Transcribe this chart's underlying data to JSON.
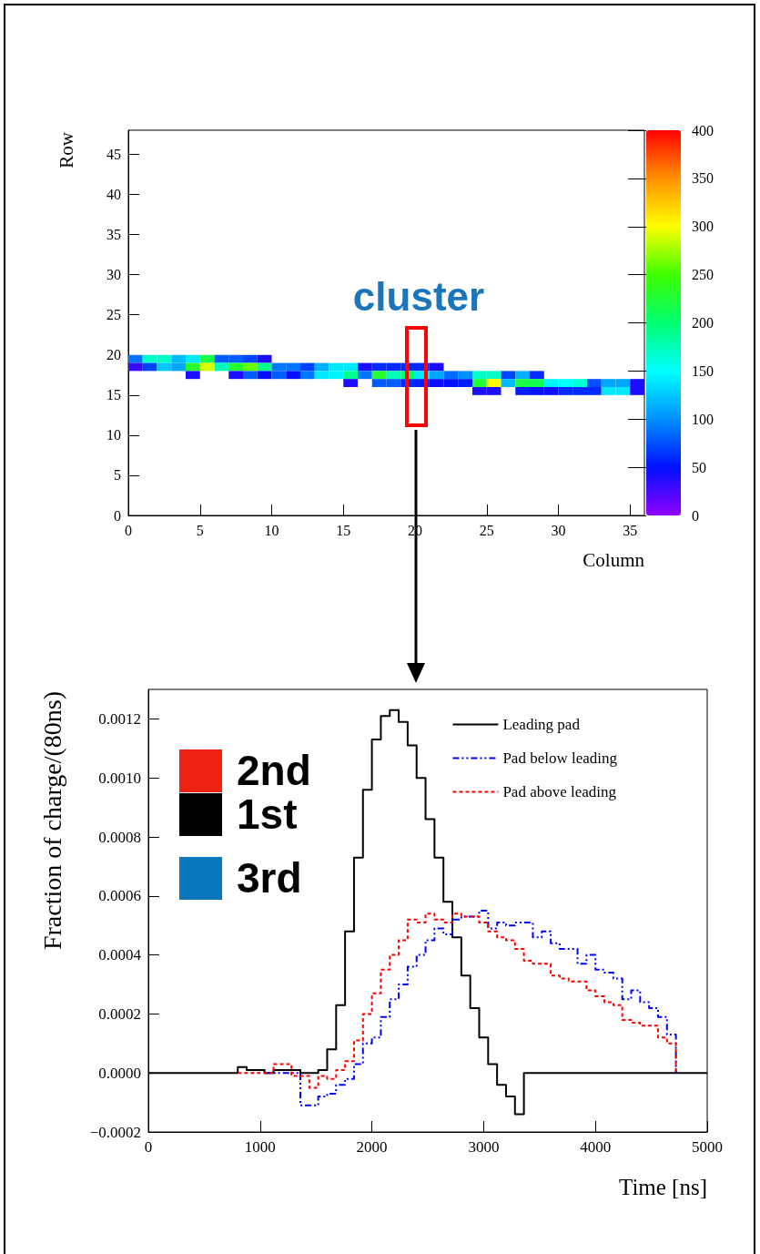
{
  "chart_data": [
    {
      "type": "scatter",
      "marker": "square",
      "xlabel": "Column",
      "ylabel": "Row",
      "xlim": [
        0,
        36
      ],
      "xticks": [
        0,
        5,
        10,
        15,
        20,
        25,
        30,
        35
      ],
      "ylim": [
        0,
        48
      ],
      "yticks": [
        0,
        5,
        10,
        15,
        20,
        25,
        30,
        35,
        40,
        45
      ],
      "clim": [
        0,
        400
      ],
      "cticks": [
        0,
        50,
        100,
        150,
        200,
        250,
        300,
        350,
        400
      ],
      "grid": false,
      "annotations": [
        "cluster"
      ],
      "x": [
        0.5,
        1.5,
        2.5,
        3.5,
        4.5,
        5.5,
        6.5,
        7.5,
        8.5,
        9.5,
        0.5,
        1.5,
        2.5,
        3.5,
        4.5,
        5.5,
        6.5,
        7.5,
        8.5,
        9.5,
        10.5,
        11.5,
        12.5,
        13.5,
        14.5,
        15.5,
        16.5,
        17.5,
        18.5,
        19.5,
        20.5,
        21.5,
        4.5,
        7.5,
        8.5,
        9.5,
        10.5,
        11.5,
        12.5,
        13.5,
        14.5,
        15.5,
        16.5,
        17.5,
        18.5,
        19.5,
        20.5,
        21.5,
        22.5,
        23.5,
        24.5,
        25.5,
        26.5,
        27.5,
        28.5,
        15.5,
        17.5,
        18.5,
        19.5,
        20.5,
        21.5,
        22.5,
        23.5,
        24.5,
        25.5,
        26.5,
        27.5,
        28.5,
        29.5,
        30.5,
        31.5,
        32.5,
        33.5,
        34.5,
        35.5,
        24.5,
        25.5,
        27.5,
        28.5,
        29.5,
        30.5,
        31.5,
        32.5,
        33.5,
        34.5,
        35.5
      ],
      "values": [
        19.5,
        19.5,
        19.5,
        19.5,
        19.5,
        19.5,
        19.5,
        19.5,
        19.5,
        19.5,
        18.5,
        18.5,
        18.5,
        18.5,
        18.5,
        18.5,
        18.5,
        18.5,
        18.5,
        18.5,
        18.5,
        18.5,
        18.5,
        18.5,
        18.5,
        18.5,
        18.5,
        18.5,
        18.5,
        18.5,
        18.5,
        18.5,
        17.5,
        17.5,
        17.5,
        17.5,
        17.5,
        17.5,
        17.5,
        17.5,
        17.5,
        17.5,
        17.5,
        17.5,
        17.5,
        17.5,
        17.5,
        17.5,
        17.5,
        17.5,
        17.5,
        17.5,
        17.5,
        17.5,
        17.5,
        16.5,
        16.5,
        16.5,
        16.5,
        16.5,
        16.5,
        16.5,
        16.5,
        16.5,
        16.5,
        16.5,
        16.5,
        16.5,
        16.5,
        16.5,
        16.5,
        16.5,
        16.5,
        16.5,
        16.5,
        15.5,
        15.5,
        15.5,
        15.5,
        15.5,
        15.5,
        15.5,
        15.5,
        15.5,
        15.5,
        15.5
      ],
      "cvalues": [
        90,
        170,
        170,
        120,
        140,
        220,
        80,
        80,
        70,
        40,
        30,
        70,
        125,
        110,
        230,
        290,
        175,
        230,
        260,
        190,
        90,
        90,
        70,
        115,
        140,
        140,
        40,
        60,
        60,
        60,
        60,
        40,
        40,
        40,
        80,
        50,
        80,
        50,
        90,
        140,
        145,
        190,
        90,
        230,
        175,
        200,
        140,
        110,
        85,
        100,
        170,
        170,
        70,
        115,
        60,
        40,
        80,
        80,
        60,
        55,
        45,
        50,
        55,
        225,
        300,
        120,
        220,
        215,
        145,
        150,
        165,
        75,
        110,
        110,
        40,
        40,
        40,
        55,
        50,
        45,
        60,
        60,
        60,
        140,
        140,
        40
      ]
    },
    {
      "type": "step",
      "xlabel": "Time [ns]",
      "ylabel": "Fraction of charge/(80ns)",
      "xlim": [
        0,
        5000
      ],
      "xticks": [
        0,
        1000,
        2000,
        3000,
        4000,
        5000
      ],
      "ylim": [
        -0.0002,
        0.0013
      ],
      "yticks": [
        {
          "value": -0.0002,
          "label": "−0.0002"
        },
        {
          "value": 0,
          "label": "0.0000"
        },
        {
          "value": 0.0002,
          "label": "0.0002"
        },
        {
          "value": 0.0004,
          "label": "0.0004"
        },
        {
          "value": 0.0006,
          "label": "0.0006"
        },
        {
          "value": 0.0008,
          "label": "0.0008"
        },
        {
          "value": 0.001,
          "label": "0.0010"
        },
        {
          "value": 0.0012,
          "label": "0.0012"
        }
      ],
      "grid": false,
      "legend": "top right",
      "annotations": [
        "2nd",
        "1st",
        "3rd"
      ],
      "series": [
        {
          "name": "Leading pad",
          "color": "#000000",
          "line_style": "solid",
          "x": [
            0,
            800,
            880,
            1040,
            1120,
            1360,
            1440,
            1520,
            1600,
            1680,
            1760,
            1840,
            1920,
            2000,
            2080,
            2160,
            2240,
            2320,
            2400,
            2480,
            2560,
            2640,
            2720,
            2800,
            2880,
            2960,
            3040,
            3120,
            3200,
            3280,
            3360,
            5000
          ],
          "values": [
            0,
            2e-05,
            1e-05,
            0,
            1e-05,
            0,
            0,
            1e-05,
            8e-05,
            0.00023,
            0.00048,
            0.00073,
            0.00096,
            0.00113,
            0.00121,
            0.00123,
            0.00119,
            0.00111,
            0.001,
            0.00086,
            0.00073,
            0.00058,
            0.00046,
            0.00033,
            0.00022,
            0.00012,
            3e-05,
            -4e-05,
            -8e-05,
            -0.00014,
            0,
            0
          ]
        },
        {
          "name": "Pad below leading",
          "color": "#0000ff",
          "line_style": "dotted",
          "x": [
            1040,
            1120,
            1200,
            1280,
            1360,
            1440,
            1520,
            1600,
            1680,
            1760,
            1840,
            1920,
            2000,
            2080,
            2160,
            2240,
            2320,
            2400,
            2480,
            2560,
            2640,
            2720,
            2800,
            2880,
            2960,
            3040,
            3120,
            3200,
            3280,
            3360,
            3440,
            3520,
            3600,
            3680,
            3760,
            3840,
            3920,
            4000,
            4080,
            4160,
            4240,
            4320,
            4400,
            4480,
            4560,
            4640,
            4720
          ],
          "values": [
            0,
            0,
            0,
            0,
            -0.00011,
            -0.00011,
            -8e-05,
            -7e-05,
            -4e-05,
            -2e-05,
            3e-05,
            0.0001,
            0.00012,
            0.00019,
            0.00025,
            0.0003,
            0.00036,
            0.0004,
            0.00045,
            0.00049,
            0.00047,
            0.00052,
            0.00053,
            0.00053,
            0.00055,
            0.00049,
            0.00051,
            0.0005,
            0.00051,
            0.00051,
            0.00046,
            0.00048,
            0.00044,
            0.00042,
            0.00042,
            0.00037,
            0.0004,
            0.00035,
            0.00034,
            0.00032,
            0.00025,
            0.00028,
            0.00024,
            0.00022,
            0.00019,
            0.00013,
            0
          ]
        },
        {
          "name": "Pad above leading",
          "color": "#ff0000",
          "line_style": "dashed",
          "x": [
            800,
            1120,
            1280,
            1440,
            1520,
            1600,
            1680,
            1760,
            1840,
            1920,
            2000,
            2080,
            2160,
            2240,
            2320,
            2400,
            2480,
            2560,
            2640,
            2720,
            2800,
            2880,
            2960,
            3040,
            3120,
            3200,
            3280,
            3360,
            3440,
            3520,
            3600,
            3680,
            3760,
            3840,
            3920,
            4000,
            4080,
            4160,
            4240,
            4320,
            4400,
            4480,
            4560,
            4640,
            4720
          ],
          "values": [
            0,
            3e-05,
            -1e-05,
            -5e-05,
            -1e-05,
            -2e-05,
            1e-05,
            4e-05,
            0.00011,
            0.0002,
            0.00027,
            0.00035,
            0.0004,
            0.00045,
            0.00052,
            0.00051,
            0.00054,
            0.00052,
            0.00051,
            0.00054,
            0.00053,
            0.00053,
            0.00051,
            0.00048,
            0.00046,
            0.00045,
            0.00042,
            0.00038,
            0.00037,
            0.00037,
            0.00033,
            0.00032,
            0.00031,
            0.00031,
            0.00028,
            0.00026,
            0.00024,
            0.00023,
            0.00018,
            0.00017,
            0.00016,
            0.00016,
            0.00012,
            0.0001,
            0
          ]
        }
      ]
    }
  ]
}
